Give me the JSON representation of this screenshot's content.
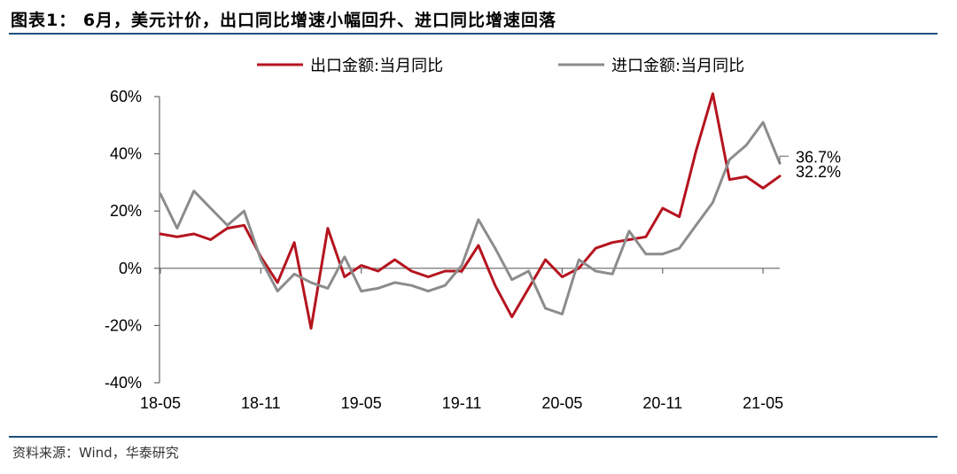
{
  "title": "图表1：  6月，美元计价，出口同比增速小幅回升、进口同比增速回落",
  "source": "资料来源：Wind，华泰研究",
  "colors": {
    "export": "#b5141f",
    "import": "#8c8c8c",
    "rule": "#1f4e79",
    "axis": "#666666"
  },
  "chart_data": {
    "type": "line",
    "title": "",
    "xlabel": "",
    "ylabel": "",
    "ylim": [
      -0.4,
      0.6
    ],
    "yticks": [
      "-40%",
      "-20%",
      "0%",
      "20%",
      "40%",
      "60%"
    ],
    "ytick_values": [
      -0.4,
      -0.2,
      0,
      0.2,
      0.4,
      0.6
    ],
    "xtick_labels": [
      "18-05",
      "18-11",
      "19-05",
      "19-11",
      "20-05",
      "20-11",
      "21-05"
    ],
    "xtick_index": [
      0,
      6,
      12,
      18,
      24,
      30,
      36
    ],
    "legend_position": "top",
    "x": [
      "18-05",
      "18-06",
      "18-07",
      "18-08",
      "18-09",
      "18-10",
      "18-11",
      "18-12",
      "19-01",
      "19-02",
      "19-03",
      "19-04",
      "19-05",
      "19-06",
      "19-07",
      "19-08",
      "19-09",
      "19-10",
      "19-11",
      "19-12",
      "20-01",
      "20-02",
      "20-03",
      "20-04",
      "20-05",
      "20-06",
      "20-07",
      "20-08",
      "20-09",
      "20-10",
      "20-11",
      "20-12",
      "21-01",
      "21-02",
      "21-03",
      "21-04",
      "21-05",
      "21-06"
    ],
    "series": [
      {
        "name": "出口金额:当月同比",
        "values": [
          0.12,
          0.11,
          0.12,
          0.1,
          0.14,
          0.15,
          0.04,
          -0.05,
          0.09,
          -0.21,
          0.14,
          -0.03,
          0.01,
          -0.01,
          0.03,
          -0.01,
          -0.03,
          -0.01,
          -0.01,
          0.08,
          -0.06,
          -0.17,
          -0.07,
          0.03,
          -0.03,
          0.0,
          0.07,
          0.09,
          0.1,
          0.11,
          0.21,
          0.18,
          0.41,
          0.61,
          0.31,
          0.32,
          0.28,
          0.322
        ],
        "end_label": "32.2%"
      },
      {
        "name": "进口金额:当月同比",
        "values": [
          0.26,
          0.14,
          0.27,
          0.21,
          0.15,
          0.2,
          0.03,
          -0.08,
          -0.02,
          -0.05,
          -0.07,
          0.04,
          -0.08,
          -0.07,
          -0.05,
          -0.06,
          -0.08,
          -0.06,
          0.01,
          0.17,
          0.07,
          -0.04,
          -0.01,
          -0.14,
          -0.16,
          0.03,
          -0.01,
          -0.02,
          0.13,
          0.05,
          0.05,
          0.07,
          0.15,
          0.23,
          0.38,
          0.43,
          0.51,
          0.367
        ],
        "end_label": "36.7%"
      }
    ]
  }
}
